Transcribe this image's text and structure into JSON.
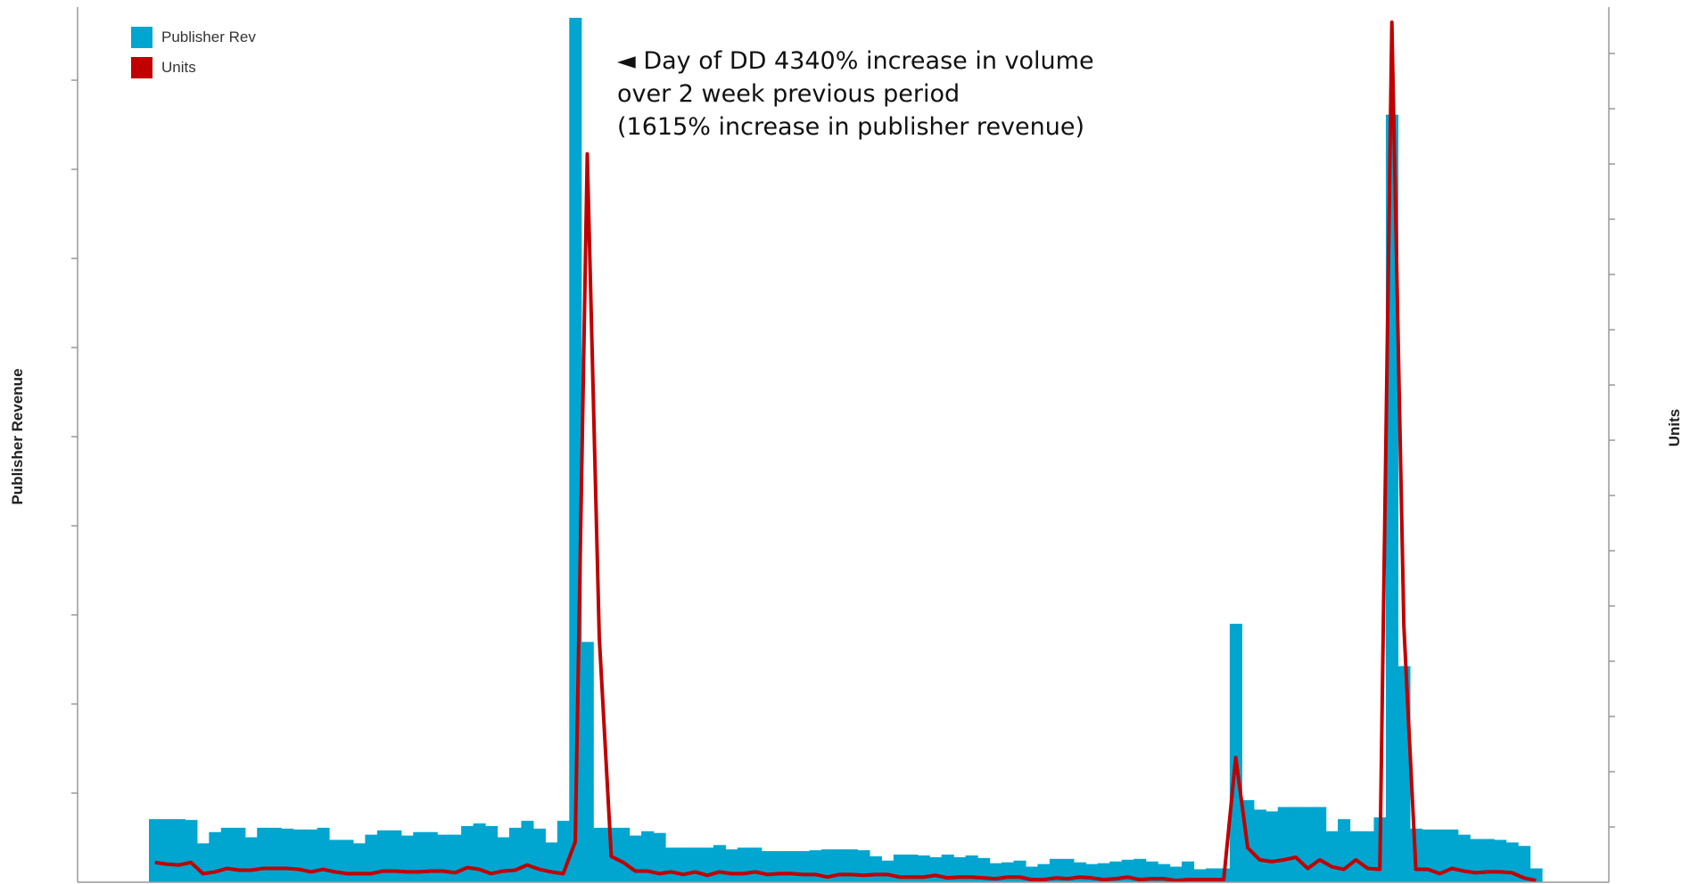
{
  "chart_data": {
    "type": "bar",
    "title": "",
    "ylabel": "Publisher Revenue",
    "y2label": "Units",
    "colors": {
      "bars": "#00a5d0",
      "line": "#c00000",
      "axis": "#999999"
    },
    "legend": [
      {
        "name": "Publisher Rev",
        "color": "#00a5d0"
      },
      {
        "name": "Units",
        "color": "#c00000"
      }
    ],
    "ylim": [
      0,
      100
    ],
    "y2lim": [
      0,
      100
    ],
    "series": [
      {
        "name": "Publisher Rev",
        "type": "bar",
        "axis": "left",
        "values": [
          7.3,
          7.3,
          7.3,
          7.2,
          4.5,
          5.8,
          6.3,
          6.3,
          5.2,
          6.3,
          6.3,
          6.2,
          6.1,
          6.1,
          6.3,
          4.9,
          4.9,
          4.5,
          5.5,
          6.0,
          6.0,
          5.4,
          5.8,
          5.8,
          5.5,
          5.5,
          6.5,
          6.8,
          6.5,
          5.2,
          6.3,
          7.1,
          6.2,
          4.6,
          7.1,
          100,
          27.8,
          6.3,
          6.3,
          6.3,
          5.4,
          5.9,
          5.7,
          4.0,
          4.0,
          4.0,
          4.0,
          4.3,
          3.8,
          4.0,
          4.0,
          3.6,
          3.6,
          3.6,
          3.6,
          3.7,
          3.8,
          3.8,
          3.8,
          3.7,
          3.0,
          2.5,
          3.2,
          3.2,
          3.1,
          2.9,
          3.2,
          2.9,
          3.1,
          2.8,
          2.2,
          2.3,
          2.5,
          1.8,
          2.1,
          2.7,
          2.7,
          2.3,
          2.1,
          2.2,
          2.4,
          2.6,
          2.7,
          2.4,
          2.1,
          1.8,
          2.4,
          1.5,
          1.6,
          1.6,
          29.9,
          9.5,
          8.4,
          8.2,
          8.7,
          8.7,
          8.7,
          8.7,
          5.9,
          7.3,
          5.9,
          5.9,
          7.5,
          88.8,
          25.0,
          6.2,
          6.1,
          6.1,
          6.1,
          5.5,
          5.0,
          5.0,
          4.9,
          4.6,
          4.2,
          1.6
        ]
      },
      {
        "name": "Units",
        "type": "line",
        "axis": "right",
        "values": [
          2.3,
          2.1,
          2.0,
          2.3,
          1.0,
          1.2,
          1.6,
          1.4,
          1.4,
          1.6,
          1.6,
          1.6,
          1.5,
          1.2,
          1.5,
          1.2,
          1.0,
          1.0,
          1.0,
          1.3,
          1.3,
          1.2,
          1.2,
          1.3,
          1.3,
          1.1,
          1.7,
          1.5,
          1.0,
          1.3,
          1.4,
          2.0,
          1.5,
          1.2,
          1.0,
          4.7,
          84.7,
          28.5,
          3.0,
          2.3,
          1.3,
          1.3,
          1.0,
          1.2,
          0.9,
          1.2,
          0.8,
          1.2,
          1.0,
          1.0,
          1.2,
          0.9,
          1.0,
          1.0,
          0.9,
          0.9,
          0.6,
          0.9,
          0.9,
          0.8,
          0.9,
          0.9,
          0.6,
          0.6,
          0.6,
          0.8,
          0.5,
          0.6,
          0.6,
          0.5,
          0.4,
          0.6,
          0.6,
          0.3,
          0.3,
          0.5,
          0.4,
          0.6,
          0.5,
          0.3,
          0.4,
          0.6,
          0.3,
          0.4,
          0.4,
          0.2,
          0.3,
          0.3,
          0.3,
          0.3,
          14.5,
          4.0,
          2.6,
          2.4,
          2.6,
          2.9,
          1.6,
          2.6,
          1.8,
          1.5,
          2.6,
          1.6,
          1.5,
          100,
          29.8,
          1.5,
          1.5,
          1.0,
          1.6,
          1.3,
          1.1,
          1.2,
          1.2,
          1.1,
          0.5,
          0.2
        ]
      }
    ],
    "annotations": [
      {
        "lines": [
          "◄ Day of DD 4340% increase in volume",
          "over 2 week previous period",
          "(1615% increase in publisher revenue)"
        ]
      }
    ],
    "grid": false,
    "legend_placement": "top-left"
  }
}
